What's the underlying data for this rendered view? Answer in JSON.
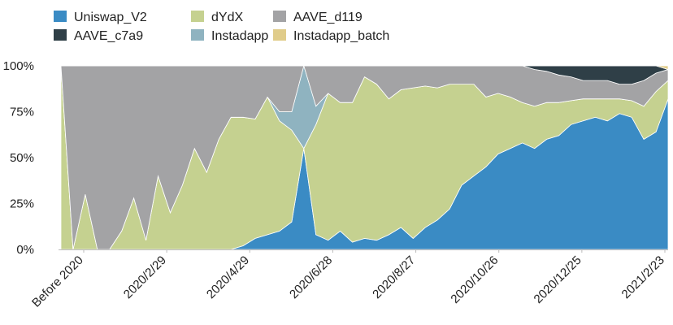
{
  "chart_data": {
    "type": "area",
    "stacked": true,
    "normalized": true,
    "title": "",
    "xlabel": "",
    "ylabel": "",
    "ylim": [
      0,
      100
    ],
    "y_ticks": [
      "0%",
      "25%",
      "50%",
      "75%",
      "100%"
    ],
    "x_tick_labels": [
      "Before 2020",
      "2020/2/29",
      "2020/4/29",
      "2020/6/28",
      "2020/8/27",
      "2020/10/26",
      "2020/12/25",
      "2021/2/23"
    ],
    "legend": [
      {
        "name": "Uniswap_V2",
        "color": "#3a8bc4"
      },
      {
        "name": "dYdX",
        "color": "#c5d190"
      },
      {
        "name": "AAVE_d119",
        "color": "#a3a3a5"
      },
      {
        "name": "AAVE_c7a9",
        "color": "#2f3f47"
      },
      {
        "name": "Instadapp",
        "color": "#8fb3c0"
      },
      {
        "name": "Instadapp_batch",
        "color": "#e0cc8a"
      }
    ],
    "legend_position": "top-left",
    "grid": false,
    "series_order_bottom_to_top": [
      "Uniswap_V2",
      "dYdX",
      "Instadapp",
      "AAVE_d119",
      "AAVE_c7a9",
      "Instadapp_batch"
    ],
    "x": [
      0,
      2,
      4,
      6,
      8,
      10,
      12,
      14,
      16,
      18,
      20,
      22,
      24,
      26,
      28,
      30,
      32,
      34,
      36,
      38,
      40,
      42,
      44,
      46,
      48,
      50,
      52,
      54,
      56,
      58,
      60,
      62,
      64,
      66,
      68,
      70,
      72,
      74,
      76,
      78,
      80,
      82,
      84,
      86,
      88,
      90,
      92,
      94,
      96,
      98,
      100
    ],
    "series": [
      {
        "name": "Uniswap_V2",
        "values": [
          0,
          0,
          0,
          0,
          0,
          0,
          0,
          0,
          0,
          0,
          0,
          0,
          0,
          0,
          0,
          2,
          6,
          8,
          10,
          15,
          55,
          8,
          5,
          10,
          4,
          6,
          5,
          8,
          12,
          6,
          12,
          16,
          22,
          35,
          40,
          45,
          52,
          55,
          58,
          55,
          60,
          62,
          68,
          70,
          72,
          70,
          74,
          72,
          60,
          64,
          82
        ]
      },
      {
        "name": "dYdX",
        "values": [
          100,
          0,
          30,
          0,
          0,
          10,
          28,
          5,
          40,
          20,
          35,
          55,
          42,
          60,
          72,
          70,
          65,
          75,
          60,
          50,
          0,
          60,
          80,
          70,
          76,
          88,
          85,
          74,
          75,
          82,
          77,
          72,
          68,
          55,
          50,
          38,
          33,
          28,
          22,
          23,
          20,
          18,
          13,
          12,
          10,
          12,
          8,
          9,
          18,
          22,
          10
        ]
      },
      {
        "name": "Instadapp",
        "values": [
          0,
          0,
          0,
          0,
          0,
          0,
          0,
          0,
          0,
          0,
          0,
          0,
          0,
          0,
          0,
          0,
          0,
          0,
          5,
          10,
          45,
          10,
          0,
          0,
          0,
          0,
          0,
          0,
          0,
          0,
          0,
          0,
          0,
          0,
          0,
          0,
          0,
          0,
          0,
          0,
          0,
          0,
          0,
          0,
          0,
          0,
          0,
          0,
          0,
          0,
          0
        ]
      },
      {
        "name": "AAVE_d119",
        "values": [
          0,
          100,
          70,
          100,
          100,
          90,
          72,
          95,
          60,
          80,
          65,
          45,
          58,
          40,
          28,
          28,
          29,
          17,
          25,
          25,
          0,
          22,
          15,
          20,
          20,
          6,
          10,
          18,
          13,
          12,
          11,
          12,
          10,
          10,
          10,
          17,
          15,
          17,
          20,
          20,
          17,
          15,
          13,
          10,
          10,
          10,
          8,
          9,
          14,
          10,
          6
        ]
      },
      {
        "name": "AAVE_c7a9",
        "values": [
          0,
          0,
          0,
          0,
          0,
          0,
          0,
          0,
          0,
          0,
          0,
          0,
          0,
          0,
          0,
          0,
          0,
          0,
          0,
          0,
          0,
          0,
          0,
          0,
          0,
          0,
          0,
          0,
          0,
          0,
          0,
          0,
          0,
          0,
          0,
          0,
          0,
          0,
          0,
          2,
          3,
          5,
          6,
          8,
          8,
          8,
          10,
          10,
          8,
          4,
          0
        ]
      },
      {
        "name": "Instadapp_batch",
        "values": [
          0,
          0,
          0,
          0,
          0,
          0,
          0,
          0,
          0,
          0,
          0,
          0,
          0,
          0,
          0,
          0,
          0,
          0,
          0,
          0,
          0,
          0,
          0,
          0,
          0,
          0,
          0,
          0,
          0,
          0,
          0,
          0,
          0,
          0,
          0,
          0,
          0,
          0,
          0,
          0,
          0,
          0,
          0,
          0,
          0,
          0,
          0,
          0,
          0,
          0,
          2
        ]
      }
    ]
  }
}
